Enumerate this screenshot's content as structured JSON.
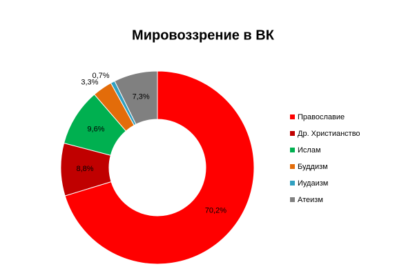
{
  "chart_data": {
    "type": "donut",
    "title": "Мировоззрение в ВК",
    "categories": [
      "Православие",
      "Др. Христианство",
      "Ислам",
      "Буддизм",
      "Иудаизм",
      "Атеизм"
    ],
    "values": [
      70.2,
      8.8,
      9.6,
      3.3,
      0.7,
      7.3
    ],
    "value_labels": [
      "70,2%",
      "8,8%",
      "9,6%",
      "3,3%",
      "0,7%",
      "7,3%"
    ],
    "colors": [
      "#ff0000",
      "#c00000",
      "#00b050",
      "#e36c0a",
      "#31a0c0",
      "#808080"
    ],
    "legend": "right"
  }
}
